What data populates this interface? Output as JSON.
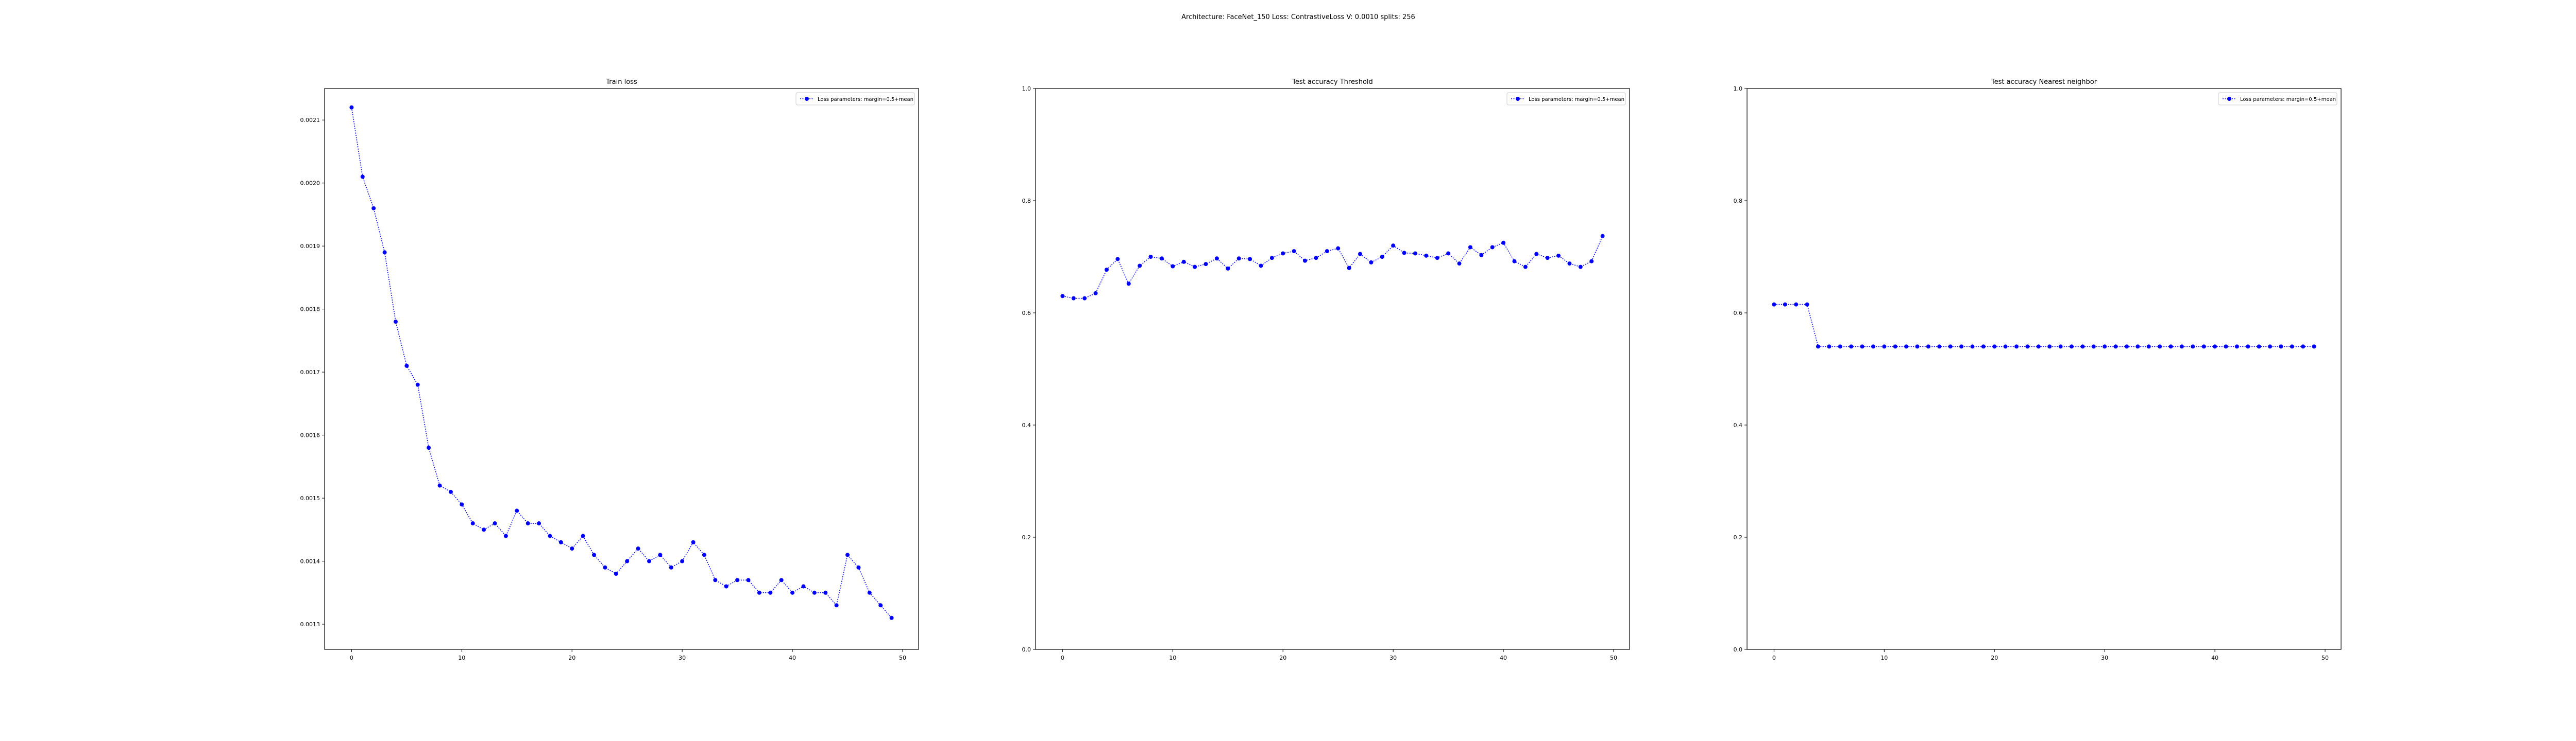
{
  "suptitle": "Architecture: FaceNet_150 Loss: ContrastiveLoss V: 0.0010 splits: 256",
  "colors": {
    "series": "#0000ff",
    "axes": "#000000",
    "legend_border": "#cccccc"
  },
  "chart_data": [
    {
      "type": "line",
      "title": "Train loss",
      "legend_label": "Loss parameters: margin=0.5+mean",
      "legend_position": "upper right",
      "grid": false,
      "marker": "circle",
      "linestyle": "dotted",
      "xlim": [
        -2.45,
        51.45
      ],
      "ylim": [
        0.00126,
        0.00215
      ],
      "xticks": [
        0,
        10,
        20,
        30,
        40,
        50
      ],
      "yticks": [
        "0.0013",
        "0.0014",
        "0.0015",
        "0.0016",
        "0.0017",
        "0.0018",
        "0.0019",
        "0.0020",
        "0.0021"
      ],
      "x": [
        0,
        1,
        2,
        3,
        4,
        5,
        6,
        7,
        8,
        9,
        10,
        11,
        12,
        13,
        14,
        15,
        16,
        17,
        18,
        19,
        20,
        21,
        22,
        23,
        24,
        25,
        26,
        27,
        28,
        29,
        30,
        31,
        32,
        33,
        34,
        35,
        36,
        37,
        38,
        39,
        40,
        41,
        42,
        43,
        44,
        45,
        46,
        47,
        48,
        49
      ],
      "y": [
        0.00212,
        0.00201,
        0.00196,
        0.00189,
        0.00178,
        0.00171,
        0.00168,
        0.00158,
        0.00152,
        0.00151,
        0.00149,
        0.00146,
        0.00145,
        0.00146,
        0.00144,
        0.00148,
        0.00146,
        0.00146,
        0.00144,
        0.00143,
        0.00142,
        0.00144,
        0.00141,
        0.00139,
        0.00138,
        0.0014,
        0.00142,
        0.0014,
        0.00141,
        0.00139,
        0.0014,
        0.00143,
        0.00141,
        0.00137,
        0.00136,
        0.00137,
        0.00137,
        0.00135,
        0.00135,
        0.00137,
        0.00135,
        0.00136,
        0.00135,
        0.00135,
        0.00133,
        0.00141,
        0.00139,
        0.00135,
        0.00133,
        0.00131
      ]
    },
    {
      "type": "line",
      "title": "Test accuracy Threshold",
      "legend_label": "Loss parameters: margin=0.5+mean",
      "legend_position": "upper right",
      "grid": false,
      "marker": "circle",
      "linestyle": "dotted",
      "xlim": [
        -2.45,
        51.45
      ],
      "ylim": [
        0.0,
        1.0
      ],
      "xticks": [
        0,
        10,
        20,
        30,
        40,
        50
      ],
      "yticks": [
        "0.0",
        "0.2",
        "0.4",
        "0.6",
        "0.8",
        "1.0"
      ],
      "x": [
        0,
        1,
        2,
        3,
        4,
        5,
        6,
        7,
        8,
        9,
        10,
        11,
        12,
        13,
        14,
        15,
        16,
        17,
        18,
        19,
        20,
        21,
        22,
        23,
        24,
        25,
        26,
        27,
        28,
        29,
        30,
        31,
        32,
        33,
        34,
        35,
        36,
        37,
        38,
        39,
        40,
        41,
        42,
        43,
        44,
        45,
        46,
        47,
        48,
        49
      ],
      "y": [
        0.63,
        0.626,
        0.626,
        0.635,
        0.677,
        0.696,
        0.652,
        0.684,
        0.7,
        0.697,
        0.683,
        0.691,
        0.682,
        0.687,
        0.697,
        0.679,
        0.697,
        0.696,
        0.684,
        0.698,
        0.706,
        0.71,
        0.693,
        0.698,
        0.71,
        0.715,
        0.68,
        0.705,
        0.69,
        0.7,
        0.72,
        0.707,
        0.706,
        0.702,
        0.698,
        0.706,
        0.688,
        0.717,
        0.703,
        0.717,
        0.725,
        0.692,
        0.682,
        0.705,
        0.698,
        0.702,
        0.688,
        0.682,
        0.692,
        0.737
      ]
    },
    {
      "type": "line",
      "title": "Test accuracy Nearest neighbor",
      "legend_label": "Loss parameters: margin=0.5+mean",
      "legend_position": "upper right",
      "grid": false,
      "marker": "circle",
      "linestyle": "dotted",
      "xlim": [
        -2.45,
        51.45
      ],
      "ylim": [
        0.0,
        1.0
      ],
      "xticks": [
        0,
        10,
        20,
        30,
        40,
        50
      ],
      "yticks": [
        "0.0",
        "0.2",
        "0.4",
        "0.6",
        "0.8",
        "1.0"
      ],
      "x": [
        0,
        1,
        2,
        3,
        4,
        5,
        6,
        7,
        8,
        9,
        10,
        11,
        12,
        13,
        14,
        15,
        16,
        17,
        18,
        19,
        20,
        21,
        22,
        23,
        24,
        25,
        26,
        27,
        28,
        29,
        30,
        31,
        32,
        33,
        34,
        35,
        36,
        37,
        38,
        39,
        40,
        41,
        42,
        43,
        44,
        45,
        46,
        47,
        48,
        49
      ],
      "y": [
        0.615,
        0.615,
        0.615,
        0.615,
        0.54,
        0.54,
        0.54,
        0.54,
        0.54,
        0.54,
        0.54,
        0.54,
        0.54,
        0.54,
        0.54,
        0.54,
        0.54,
        0.54,
        0.54,
        0.54,
        0.54,
        0.54,
        0.54,
        0.54,
        0.54,
        0.54,
        0.54,
        0.54,
        0.54,
        0.54,
        0.54,
        0.54,
        0.54,
        0.54,
        0.54,
        0.54,
        0.54,
        0.54,
        0.54,
        0.54,
        0.54,
        0.54,
        0.54,
        0.54,
        0.54,
        0.54,
        0.54,
        0.54,
        0.54,
        0.54
      ]
    }
  ]
}
